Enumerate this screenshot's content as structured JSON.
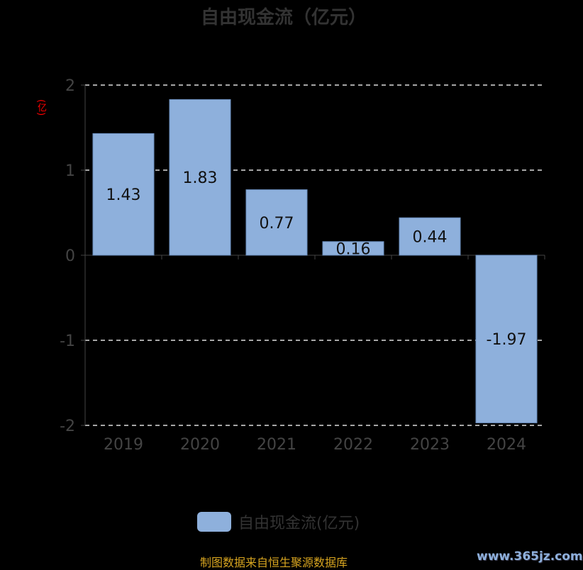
{
  "chart_data": {
    "type": "bar",
    "title": "自由现金流（亿元）",
    "ylabel": "(亿)",
    "categories": [
      "2019",
      "2020",
      "2021",
      "2022",
      "2023",
      "2024"
    ],
    "series": [
      {
        "name": "自由现金流(亿元)",
        "values": [
          1.43,
          1.83,
          0.77,
          0.16,
          0.44,
          -1.97
        ]
      }
    ],
    "ylim": [
      -2,
      2
    ],
    "yticks": [
      "2",
      "1",
      "0",
      "-1",
      "-2"
    ],
    "grid": true,
    "legend": "bottom",
    "color": "#8eb0dc"
  },
  "footer": {
    "source": "制图数据来自恒生聚源数据库",
    "watermark": "www.365jz.com"
  }
}
